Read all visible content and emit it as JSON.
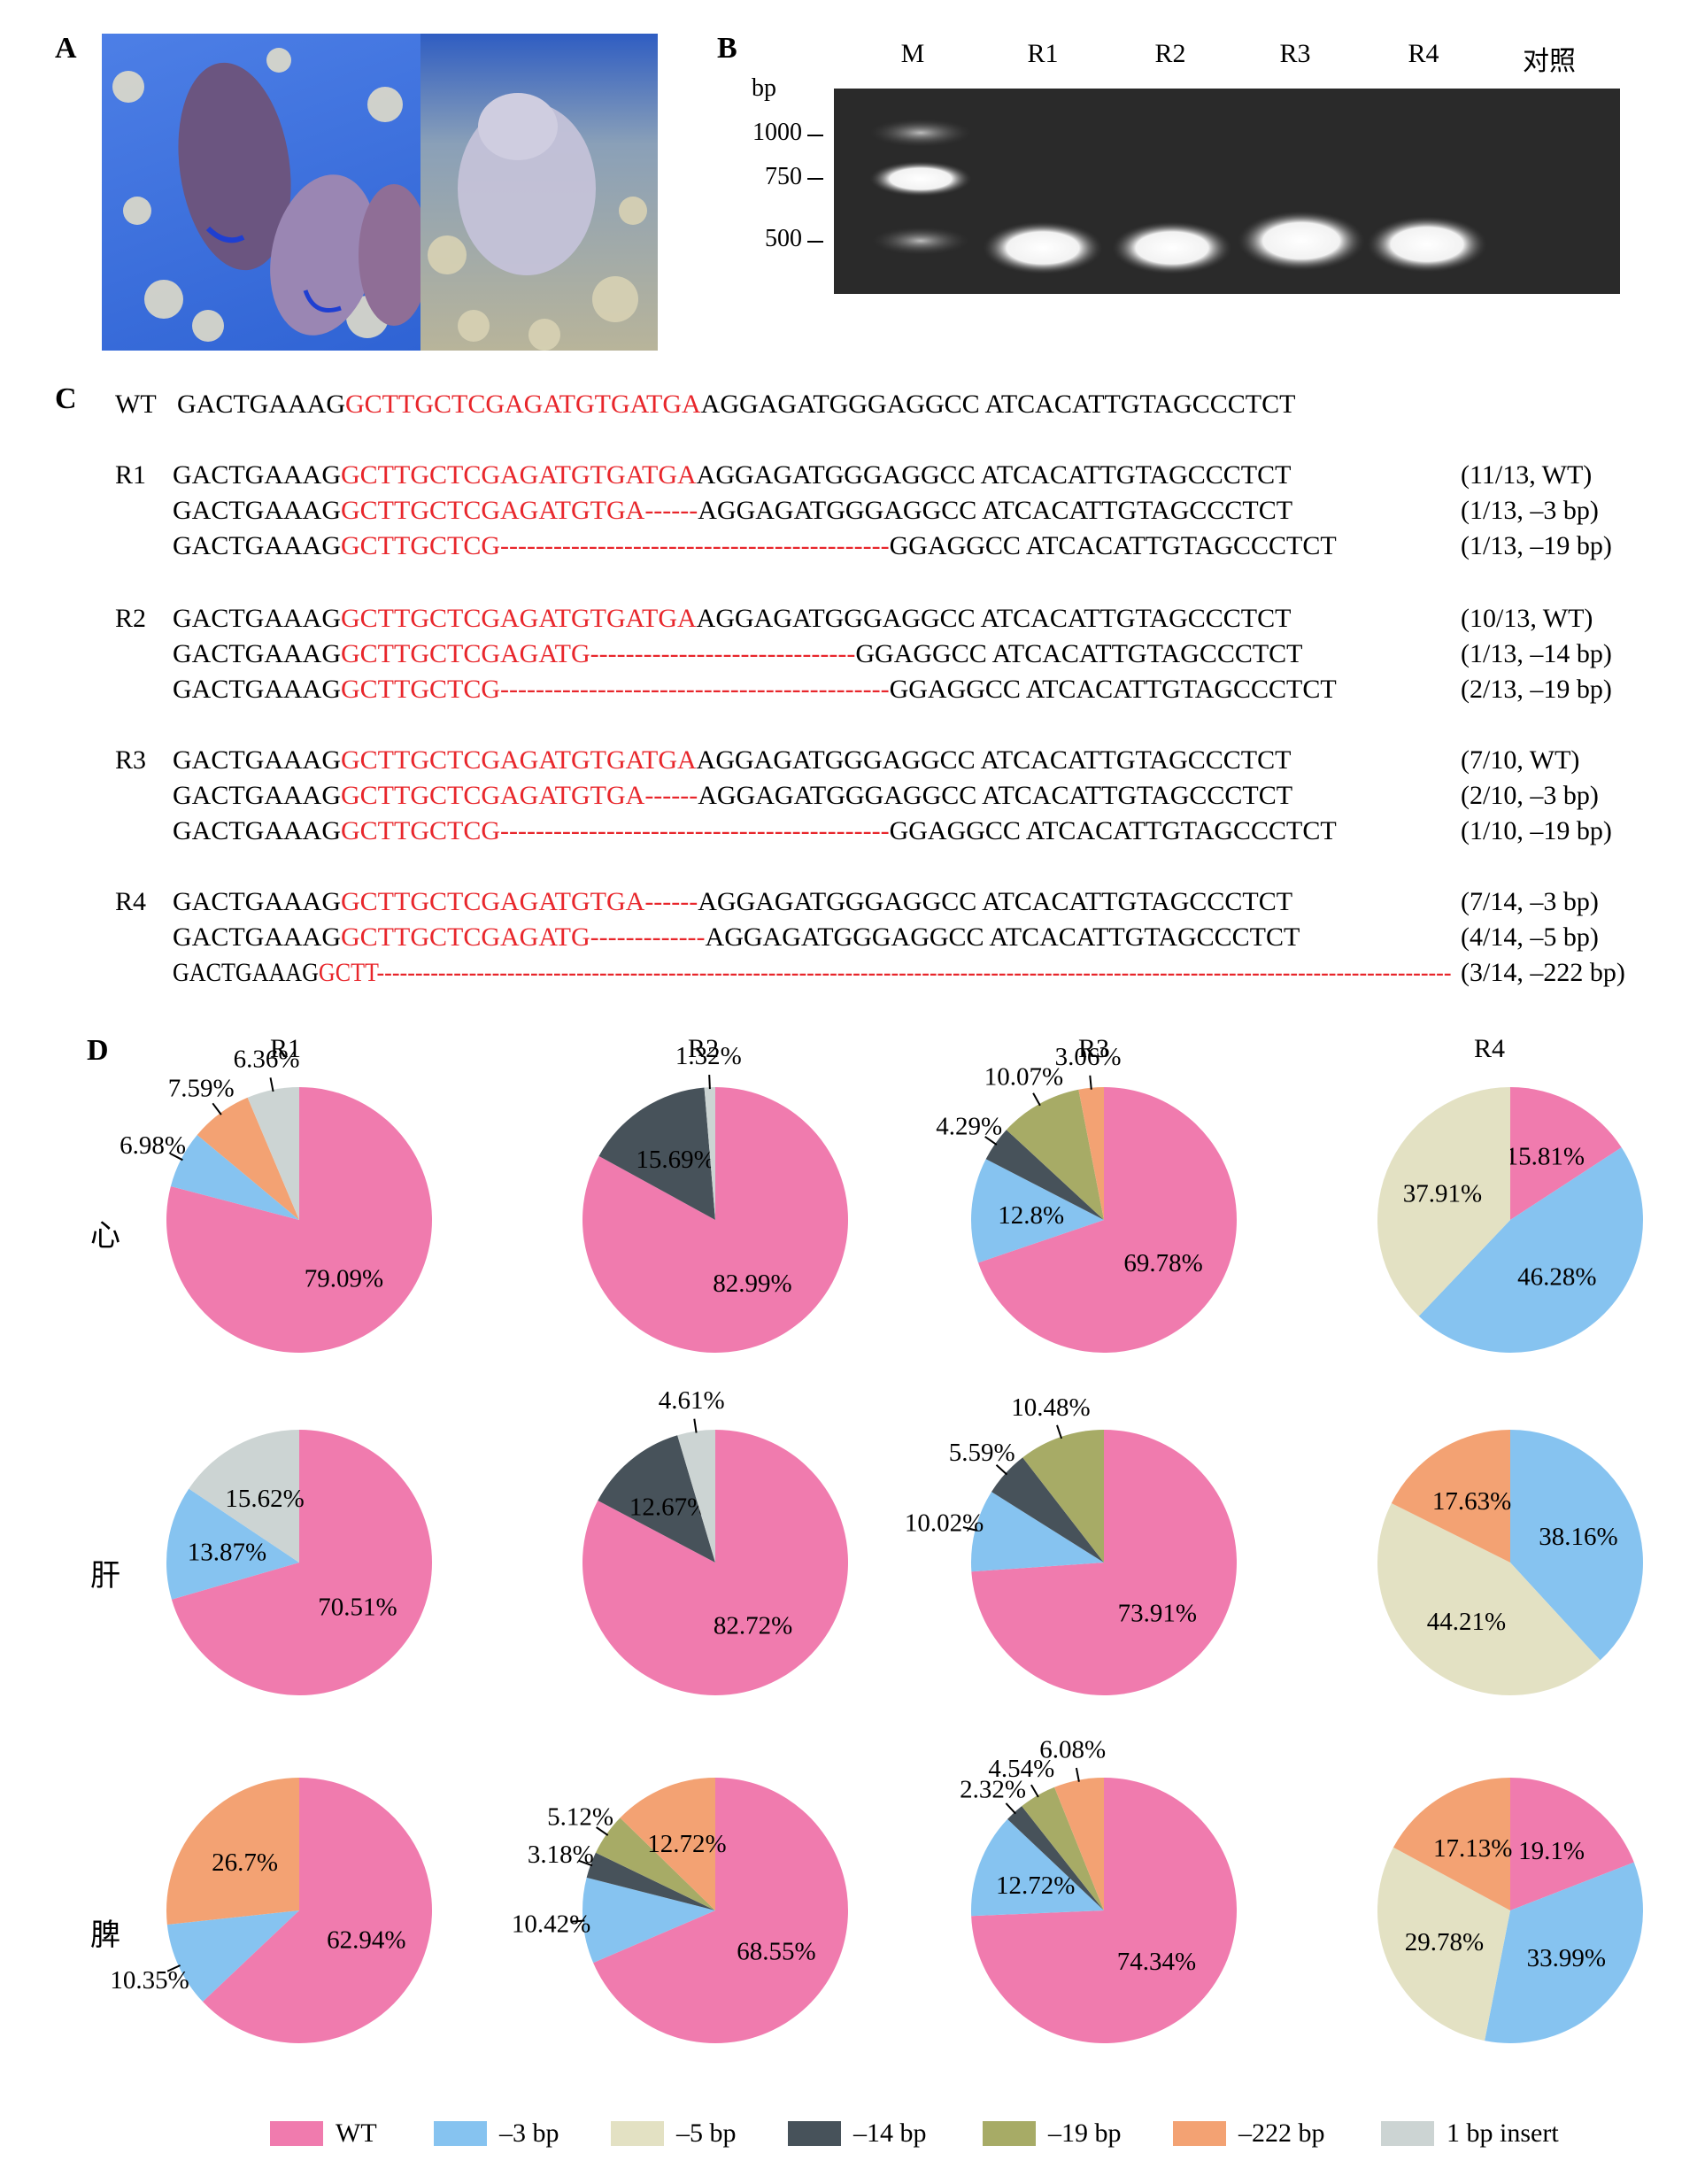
{
  "panels": {
    "a": "A",
    "b": "B",
    "c": "C",
    "d": "D"
  },
  "gel": {
    "lanes": [
      "M",
      "R1",
      "R2",
      "R3",
      "R4",
      "对照"
    ],
    "bp_unit": "bp",
    "bp_marks": [
      "1000",
      "750",
      "500"
    ]
  },
  "sequences": {
    "wt_label": "WT",
    "wt": {
      "pre": "GACTGAAAG",
      "target": "GCTTGCTCGAGATGTGATGA",
      "post": "AGGAGATGGGAGGCC ATCACATTGTAGCCCTCT"
    },
    "groups": [
      {
        "label": "R1",
        "rows": [
          {
            "pre": "GACTGAAAG",
            "target": "GCTTGCTCGAGATGTGATGA",
            "post": "AGGAGATGGGAGGCC ATCACATTGTAGCCCTCT",
            "note": "(11/13, WT)"
          },
          {
            "pre": "GACTGAAAG",
            "target": "GCTTGCTCGAGATGTGA------",
            "post": "AGGAGATGGGAGGCC ATCACATTGTAGCCCTCT",
            "note": "(1/13, –3 bp)"
          },
          {
            "pre": "GACTGAAAG",
            "target": "GCTTGCTCG--------------------------------------------",
            "post": "GGAGGCC ATCACATTGTAGCCCTCT",
            "note": "(1/13, –19 bp)"
          }
        ]
      },
      {
        "label": "R2",
        "rows": [
          {
            "pre": "GACTGAAAG",
            "target": "GCTTGCTCGAGATGTGATGA",
            "post": "AGGAGATGGGAGGCC ATCACATTGTAGCCCTCT",
            "note": "(10/13, WT)"
          },
          {
            "pre": "GACTGAAAG",
            "target": "GCTTGCTCGAGATG------------------------------",
            "post": "GGAGGCC ATCACATTGTAGCCCTCT",
            "note": "(1/13, –14 bp)"
          },
          {
            "pre": "GACTGAAAG",
            "target": "GCTTGCTCG--------------------------------------------",
            "post": "GGAGGCC ATCACATTGTAGCCCTCT",
            "note": "(2/13, –19 bp)"
          }
        ]
      },
      {
        "label": "R3",
        "rows": [
          {
            "pre": "GACTGAAAG",
            "target": "GCTTGCTCGAGATGTGATGA",
            "post": "AGGAGATGGGAGGCC ATCACATTGTAGCCCTCT",
            "note": "(7/10, WT)"
          },
          {
            "pre": "GACTGAAAG",
            "target": "GCTTGCTCGAGATGTGA------",
            "post": "AGGAGATGGGAGGCC ATCACATTGTAGCCCTCT",
            "note": "(2/10, –3 bp)"
          },
          {
            "pre": "GACTGAAAG",
            "target": "GCTTGCTCG--------------------------------------------",
            "post": "GGAGGCC ATCACATTGTAGCCCTCT",
            "note": "(1/10, –19 bp)"
          }
        ]
      },
      {
        "label": "R4",
        "rows": [
          {
            "pre": "GACTGAAAG",
            "target": "GCTTGCTCGAGATGTGA------",
            "post": "AGGAGATGGGAGGCC ATCACATTGTAGCCCTCT",
            "note": "(7/14, –3 bp)"
          },
          {
            "pre": "GACTGAAAG",
            "target": "GCTTGCTCGAGATG-------------",
            "post": "AGGAGATGGGAGGCC ATCACATTGTAGCCCTCT",
            "note": "(4/14, –5 bp)"
          },
          {
            "pre": "GACTGAAAG",
            "target": "GCTT--------------------------------------------------------------------------------------------------------------------------------------------",
            "post": "",
            "note": "(3/14, –222 bp)"
          }
        ]
      }
    ]
  },
  "pies": {
    "columns": [
      "R1",
      "R2",
      "R3",
      "R4"
    ],
    "tissues": [
      "心",
      "肝",
      "脾"
    ]
  },
  "colors": {
    "WT": "#f07bae",
    "m3": "#86c3f0",
    "m5": "#e3e1c3",
    "m14": "#47525a",
    "m19": "#a7ab66",
    "m222": "#f3a273",
    "ins1": "#ccd4d3"
  },
  "legend": [
    {
      "key": "WT",
      "label": "WT"
    },
    {
      "key": "m3",
      "label": "–3 bp"
    },
    {
      "key": "m5",
      "label": "–5 bp"
    },
    {
      "key": "m14",
      "label": "–14 bp"
    },
    {
      "key": "m19",
      "label": "–19 bp"
    },
    {
      "key": "m222",
      "label": "–222 bp"
    },
    {
      "key": "ins1",
      "label": "1 bp insert"
    }
  ],
  "chart_data": [
    {
      "type": "pie",
      "column": "R1",
      "tissue": "心",
      "slices": [
        {
          "key": "WT",
          "value": 79.09,
          "label": "79.09%"
        },
        {
          "key": "m3",
          "value": 6.98,
          "label": "6.98%"
        },
        {
          "key": "m222",
          "value": 7.59,
          "label": "7.59%"
        },
        {
          "key": "ins1",
          "value": 6.36,
          "label": "6.36%"
        }
      ]
    },
    {
      "type": "pie",
      "column": "R2",
      "tissue": "心",
      "slices": [
        {
          "key": "WT",
          "value": 82.99,
          "label": "82.99%"
        },
        {
          "key": "m14",
          "value": 15.69,
          "label": "15.69%"
        },
        {
          "key": "ins1",
          "value": 1.32,
          "label": "1.32%"
        }
      ]
    },
    {
      "type": "pie",
      "column": "R3",
      "tissue": "心",
      "slices": [
        {
          "key": "WT",
          "value": 69.78,
          "label": "69.78%"
        },
        {
          "key": "m3",
          "value": 12.8,
          "label": "12.8%"
        },
        {
          "key": "m14",
          "value": 4.29,
          "label": "4.29%"
        },
        {
          "key": "m19",
          "value": 10.07,
          "label": "10.07%"
        },
        {
          "key": "m222",
          "value": 3.06,
          "label": "3.06%"
        }
      ]
    },
    {
      "type": "pie",
      "column": "R4",
      "tissue": "心",
      "slices": [
        {
          "key": "WT",
          "value": 15.81,
          "label": "15.81%"
        },
        {
          "key": "m3",
          "value": 46.28,
          "label": "46.28%"
        },
        {
          "key": "m5",
          "value": 37.91,
          "label": "37.91%"
        }
      ]
    },
    {
      "type": "pie",
      "column": "R1",
      "tissue": "肝",
      "slices": [
        {
          "key": "WT",
          "value": 70.51,
          "label": "70.51%"
        },
        {
          "key": "m3",
          "value": 13.87,
          "label": "13.87%"
        },
        {
          "key": "ins1",
          "value": 15.62,
          "label": "15.62%"
        }
      ]
    },
    {
      "type": "pie",
      "column": "R2",
      "tissue": "肝",
      "slices": [
        {
          "key": "WT",
          "value": 82.72,
          "label": "82.72%"
        },
        {
          "key": "m14",
          "value": 12.67,
          "label": "12.67%"
        },
        {
          "key": "ins1",
          "value": 4.61,
          "label": "4.61%"
        }
      ]
    },
    {
      "type": "pie",
      "column": "R3",
      "tissue": "肝",
      "slices": [
        {
          "key": "WT",
          "value": 73.91,
          "label": "73.91%"
        },
        {
          "key": "m3",
          "value": 10.02,
          "label": "10.02%"
        },
        {
          "key": "m14",
          "value": 5.59,
          "label": "5.59%"
        },
        {
          "key": "m19",
          "value": 10.48,
          "label": "10.48%"
        }
      ]
    },
    {
      "type": "pie",
      "column": "R4",
      "tissue": "肝",
      "slices": [
        {
          "key": "m3",
          "value": 38.16,
          "label": "38.16%"
        },
        {
          "key": "m5",
          "value": 44.21,
          "label": "44.21%"
        },
        {
          "key": "m222",
          "value": 17.63,
          "label": "17.63%"
        }
      ]
    },
    {
      "type": "pie",
      "column": "R1",
      "tissue": "脾",
      "slices": [
        {
          "key": "WT",
          "value": 62.94,
          "label": "62.94%"
        },
        {
          "key": "m3",
          "value": 10.35,
          "label": "10.35%"
        },
        {
          "key": "m222",
          "value": 26.7,
          "label": "26.7%"
        }
      ]
    },
    {
      "type": "pie",
      "column": "R2",
      "tissue": "脾",
      "slices": [
        {
          "key": "WT",
          "value": 68.55,
          "label": "68.55%"
        },
        {
          "key": "m3",
          "value": 10.42,
          "label": "10.42%"
        },
        {
          "key": "m14",
          "value": 3.18,
          "label": "3.18%"
        },
        {
          "key": "m19",
          "value": 5.12,
          "label": "5.12%"
        },
        {
          "key": "m222",
          "value": 12.72,
          "label": "12.72%"
        }
      ]
    },
    {
      "type": "pie",
      "column": "R3",
      "tissue": "脾",
      "slices": [
        {
          "key": "WT",
          "value": 74.34,
          "label": "74.34%"
        },
        {
          "key": "m3",
          "value": 12.72,
          "label": "12.72%"
        },
        {
          "key": "m14",
          "value": 2.32,
          "label": "2.32%"
        },
        {
          "key": "m19",
          "value": 4.54,
          "label": "4.54%"
        },
        {
          "key": "m222",
          "value": 6.08,
          "label": "6.08%"
        }
      ]
    },
    {
      "type": "pie",
      "column": "R4",
      "tissue": "脾",
      "slices": [
        {
          "key": "WT",
          "value": 19.1,
          "label": "19.1%"
        },
        {
          "key": "m3",
          "value": 33.99,
          "label": "33.99%"
        },
        {
          "key": "m5",
          "value": 29.78,
          "label": "29.78%"
        },
        {
          "key": "m222",
          "value": 17.13,
          "label": "17.13%"
        }
      ]
    }
  ]
}
